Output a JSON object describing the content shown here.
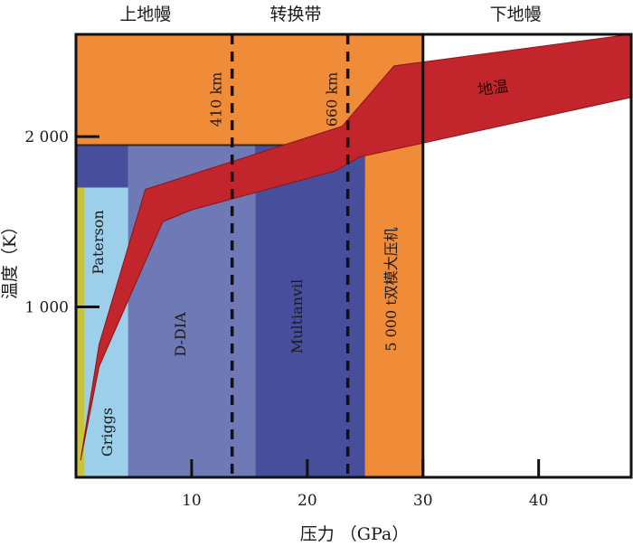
{
  "chart_data": {
    "type": "area",
    "xlabel": "压力 （GPa）",
    "ylabel": "温度（K）",
    "xlim": [
      0,
      48
    ],
    "ylim": [
      0,
      2600
    ],
    "x_ticks": [
      10,
      20,
      30,
      40
    ],
    "y_ticks": [
      1000,
      2000
    ],
    "y_tick_labels": [
      "1 000",
      "2 000"
    ],
    "zones": [
      {
        "label": "上地幔",
        "x_center": 6
      },
      {
        "label": "转换带",
        "x_center": 19
      },
      {
        "label": "下地幔",
        "x_center": 38
      }
    ],
    "boundaries": [
      {
        "label": "410 km",
        "x": 13.5
      },
      {
        "label": "660 km",
        "x": 23.5
      }
    ],
    "apparatus_ranges": [
      {
        "name": "Griggs",
        "x": [
          0,
          4.5
        ],
        "y_max": 1700,
        "color": "#9ccfea"
      },
      {
        "name": "Paterson",
        "x": [
          0,
          4.5
        ],
        "y_max": 1750,
        "color": "#9ccfea"
      },
      {
        "name": "D-DIA",
        "x": [
          4.5,
          15.5
        ],
        "y_max": 1950,
        "color": "#6e79b6"
      },
      {
        "name": "Multianvil",
        "x": [
          15.5,
          25
        ],
        "y_max": 1950,
        "color": "#474f9c"
      },
      {
        "name": "5 000 t双模大压机",
        "x": [
          25,
          30
        ],
        "y_max": 1950,
        "color": "#f08c38"
      }
    ],
    "background_bands": [
      {
        "x": [
          0,
          30
        ],
        "y": [
          1950,
          2600
        ],
        "color": "#f08c38"
      },
      {
        "x": [
          0,
          25
        ],
        "y": [
          1700,
          1950
        ],
        "color": "#474f9c"
      }
    ],
    "left_strip_color": "#c9c43c",
    "geotherm": {
      "label": "地温",
      "color": "#c2262c",
      "upper": [
        [
          0.4,
          100
        ],
        [
          2,
          780
        ],
        [
          6,
          1690
        ],
        [
          23,
          2060
        ],
        [
          27.5,
          2415
        ],
        [
          48,
          2600
        ]
      ],
      "lower": [
        [
          48,
          2230
        ],
        [
          24.5,
          1880
        ],
        [
          22.5,
          1800
        ],
        [
          10,
          1570
        ],
        [
          7.5,
          1500
        ],
        [
          2,
          650
        ],
        [
          0.4,
          100
        ]
      ]
    }
  }
}
